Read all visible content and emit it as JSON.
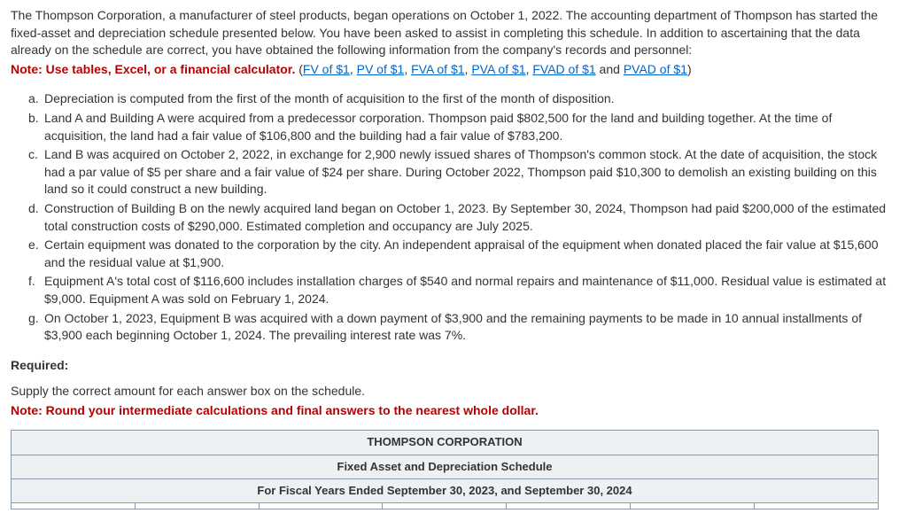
{
  "intro": "The Thompson Corporation, a manufacturer of steel products, began operations on October 1, 2022. The accounting department of Thompson has started the fixed-asset and depreciation schedule presented below. You have been asked to assist in completing this schedule. In addition to ascertaining that the data already on the schedule are correct, you have obtained the following information from the company's records and personnel:",
  "note_prefix": "Note: Use tables, Excel, or a financial calculator. ",
  "links": {
    "open": "(",
    "fv": "FV of $1",
    "pv": "PV of $1",
    "fva": "FVA of $1",
    "pva": "PVA of $1",
    "fvad": "FVAD of $1",
    "and": " and ",
    "pvad": "PVAD of $1",
    "close": ")",
    "sep": ", "
  },
  "items": {
    "a": {
      "letter": "a.",
      "text": "Depreciation is computed from the first of the month of acquisition to the first of the month of disposition."
    },
    "b": {
      "letter": "b.",
      "text": "Land A and Building A were acquired from a predecessor corporation. Thompson paid $802,500 for the land and building together. At the time of acquisition, the land had a fair value of $106,800 and the building had a fair value of $783,200."
    },
    "c": {
      "letter": "c.",
      "text": "Land B was acquired on October 2, 2022, in exchange for 2,900 newly issued shares of Thompson's common stock. At the date of acquisition, the stock had a par value of $5 per share and a fair value of $24 per share. During October 2022, Thompson paid $10,300 to demolish an existing building on this land so it could construct a new building."
    },
    "d": {
      "letter": "d.",
      "text": "Construction of Building B on the newly acquired land began on October 1, 2023. By September 30, 2024, Thompson had paid $200,000 of the estimated total construction costs of $290,000. Estimated completion and occupancy are July 2025."
    },
    "e": {
      "letter": "e.",
      "text": "Certain equipment was donated to the corporation by the city. An independent appraisal of the equipment when donated placed the fair value at $15,600 and the residual value at $1,900."
    },
    "f": {
      "letter": "f.",
      "text": "Equipment A's total cost of $116,600 includes installation charges of $540 and normal repairs and maintenance of $11,000. Residual value is estimated at $9,000. Equipment A was sold on February 1, 2024."
    },
    "g": {
      "letter": "g.",
      "text": "On October 1, 2023, Equipment B was acquired with a down payment of $3,900 and the remaining payments to be made in 10 annual installments of $3,900 each beginning October 1, 2024. The prevailing interest rate was 7%."
    }
  },
  "required_label": "Required:",
  "schedule_instr": "Supply the correct amount for each answer box on the schedule.",
  "note_round": "Note: Round your intermediate calculations and final answers to the nearest whole dollar.",
  "table": {
    "title": "THOMPSON CORPORATION",
    "subtitle": "Fixed Asset and Depreciation Schedule",
    "period": "For Fiscal Years Ended September 30, 2023, and September 30, 2024"
  },
  "style": {
    "link_color": "#0066cc",
    "note_color": "#b90000",
    "border_color": "#8a9aa8",
    "header_bg": "#eef1f4",
    "body_font_size": 14,
    "table_font_size": 13
  }
}
